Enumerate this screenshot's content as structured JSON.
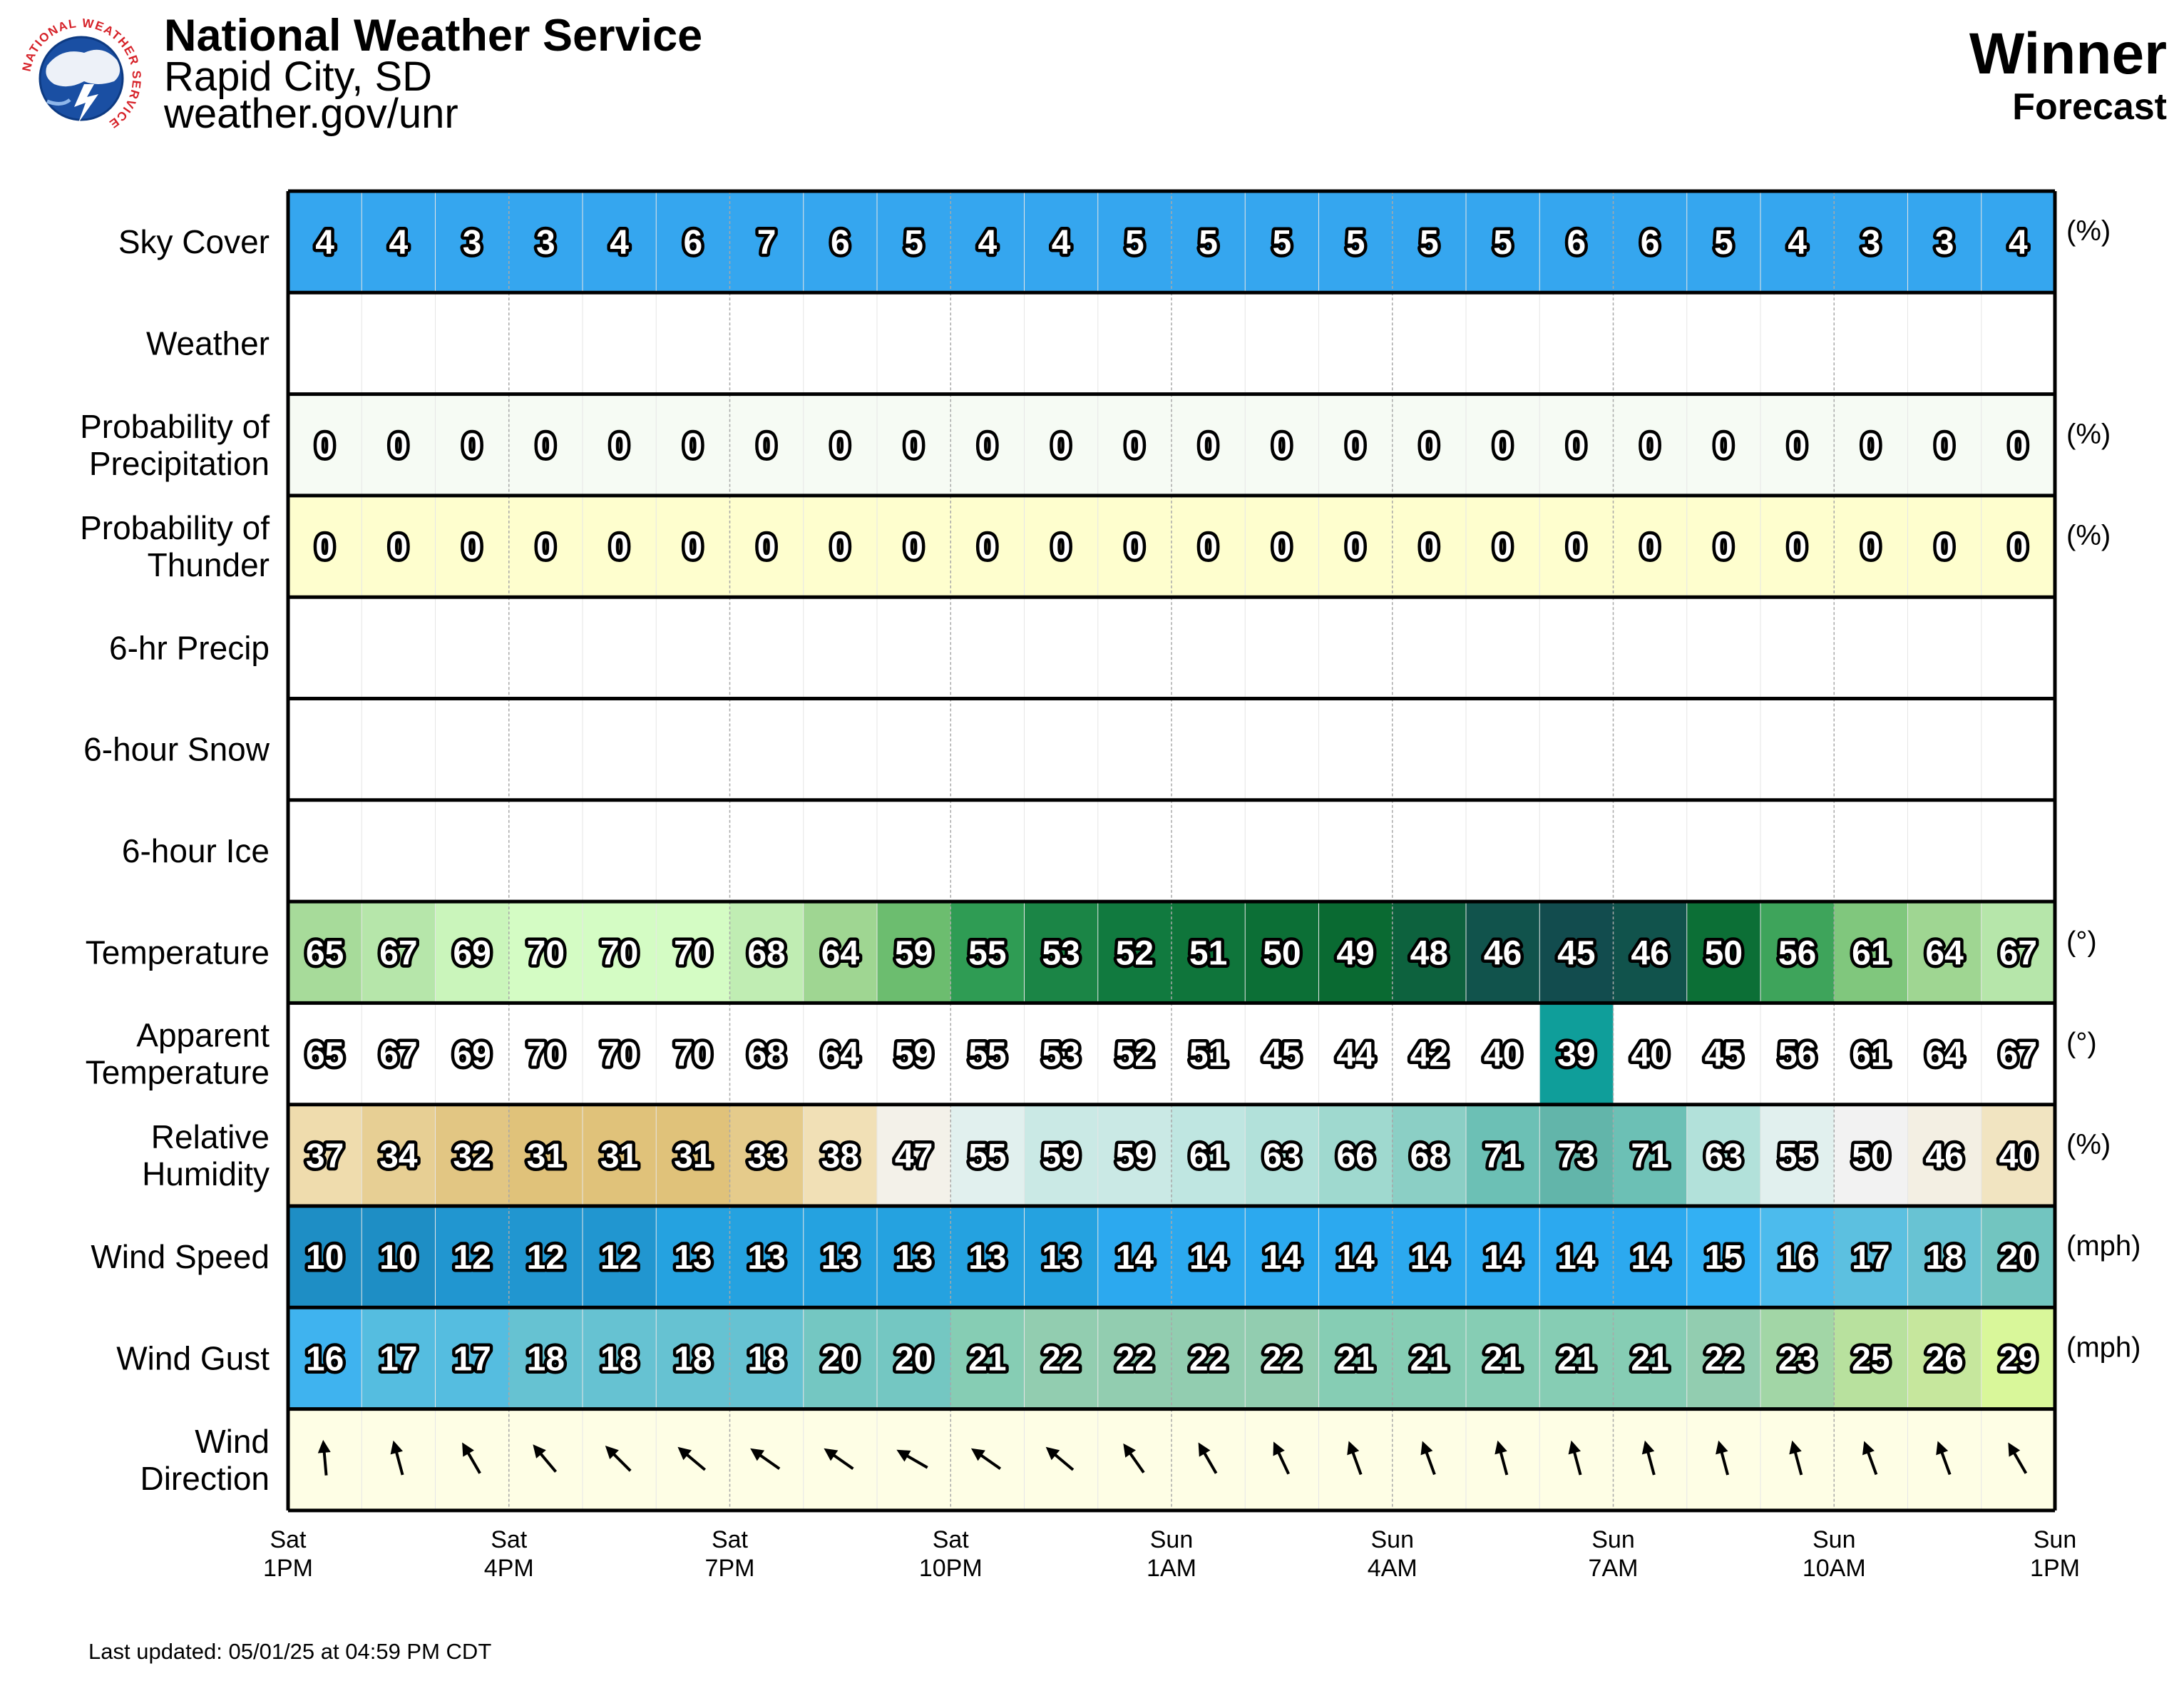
{
  "header": {
    "agency": "National Weather Service",
    "office": "Rapid City, SD",
    "website": "weather.gov/unr",
    "location": "Winner",
    "product": "Forecast",
    "logo_icon": "nws-logo-icon",
    "logo_text": "NATIONAL WEATHER SERVICE"
  },
  "chart_data": {
    "type": "table",
    "hours": 24,
    "x_ticks": [
      {
        "day": "Sat",
        "time": "1PM"
      },
      {
        "day": "Sat",
        "time": "4PM"
      },
      {
        "day": "Sat",
        "time": "7PM"
      },
      {
        "day": "Sat",
        "time": "10PM"
      },
      {
        "day": "Sun",
        "time": "1AM"
      },
      {
        "day": "Sun",
        "time": "4AM"
      },
      {
        "day": "Sun",
        "time": "7AM"
      },
      {
        "day": "Sun",
        "time": "10AM"
      },
      {
        "day": "Sun",
        "time": "1PM"
      }
    ],
    "rows": [
      {
        "label": [
          "Sky Cover"
        ],
        "unit": "(%)",
        "style": "sky",
        "values": [
          4,
          4,
          3,
          3,
          4,
          6,
          7,
          6,
          5,
          4,
          4,
          5,
          5,
          5,
          5,
          5,
          5,
          6,
          6,
          5,
          4,
          3,
          3,
          4
        ]
      },
      {
        "label": [
          "Weather"
        ],
        "unit": "",
        "style": "empty",
        "values": []
      },
      {
        "label": [
          "Probability of",
          "Precipitation"
        ],
        "unit": "(%)",
        "style": "pop",
        "values": [
          0,
          0,
          0,
          0,
          0,
          0,
          0,
          0,
          0,
          0,
          0,
          0,
          0,
          0,
          0,
          0,
          0,
          0,
          0,
          0,
          0,
          0,
          0,
          0
        ]
      },
      {
        "label": [
          "Probability of",
          "Thunder"
        ],
        "unit": "(%)",
        "style": "thunder",
        "values": [
          0,
          0,
          0,
          0,
          0,
          0,
          0,
          0,
          0,
          0,
          0,
          0,
          0,
          0,
          0,
          0,
          0,
          0,
          0,
          0,
          0,
          0,
          0,
          0
        ]
      },
      {
        "label": [
          "6-hr Precip"
        ],
        "unit": "",
        "style": "empty",
        "values": []
      },
      {
        "label": [
          "6-hour Snow"
        ],
        "unit": "",
        "style": "empty",
        "values": []
      },
      {
        "label": [
          "6-hour Ice"
        ],
        "unit": "",
        "style": "empty",
        "values": []
      },
      {
        "label": [
          "Temperature"
        ],
        "unit": "(°)",
        "style": "temp",
        "values": [
          65,
          67,
          69,
          70,
          70,
          70,
          68,
          64,
          59,
          55,
          53,
          52,
          51,
          50,
          49,
          48,
          46,
          45,
          46,
          50,
          56,
          61,
          64,
          67
        ]
      },
      {
        "label": [
          "Apparent",
          "Temperature"
        ],
        "unit": "(°)",
        "style": "apparent",
        "values": [
          65,
          67,
          69,
          70,
          70,
          70,
          68,
          64,
          59,
          55,
          53,
          52,
          51,
          45,
          44,
          42,
          40,
          39,
          40,
          45,
          56,
          61,
          64,
          67
        ]
      },
      {
        "label": [
          "Relative",
          "Humidity"
        ],
        "unit": "(%)",
        "style": "rh",
        "values": [
          37,
          34,
          32,
          31,
          31,
          31,
          33,
          38,
          47,
          55,
          59,
          59,
          61,
          63,
          66,
          68,
          71,
          73,
          71,
          63,
          55,
          50,
          46,
          40
        ]
      },
      {
        "label": [
          "Wind Speed"
        ],
        "unit": "(mph)",
        "style": "wind",
        "values": [
          10,
          10,
          12,
          12,
          12,
          13,
          13,
          13,
          13,
          13,
          13,
          14,
          14,
          14,
          14,
          14,
          14,
          14,
          14,
          15,
          16,
          17,
          18,
          20
        ]
      },
      {
        "label": [
          "Wind Gust"
        ],
        "unit": "(mph)",
        "style": "gust",
        "values": [
          16,
          17,
          17,
          18,
          18,
          18,
          18,
          20,
          20,
          21,
          22,
          22,
          22,
          22,
          21,
          21,
          21,
          21,
          21,
          22,
          23,
          25,
          26,
          29
        ]
      },
      {
        "label": [
          "Wind",
          "Direction"
        ],
        "unit": "",
        "style": "dir",
        "values": [
          175,
          165,
          150,
          140,
          135,
          130,
          125,
          125,
          120,
          125,
          130,
          145,
          150,
          155,
          160,
          160,
          165,
          165,
          165,
          165,
          165,
          160,
          160,
          150
        ]
      }
    ],
    "colors": {
      "sky": "#35a6ef",
      "pop": "#f6fbf4",
      "thunder": "#fefece",
      "apparent_highlight": "#0f9e9a",
      "dir_bg": "#fefee5",
      "text_fill": "#ffffff",
      "text_stroke": "#000000"
    }
  },
  "footer": {
    "last_updated": "Last updated: 05/01/25 at 04:59 PM CDT"
  }
}
